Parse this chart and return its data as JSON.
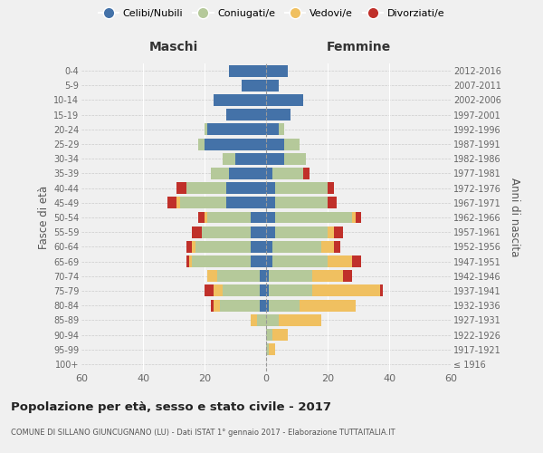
{
  "age_groups": [
    "100+",
    "95-99",
    "90-94",
    "85-89",
    "80-84",
    "75-79",
    "70-74",
    "65-69",
    "60-64",
    "55-59",
    "50-54",
    "45-49",
    "40-44",
    "35-39",
    "30-34",
    "25-29",
    "20-24",
    "15-19",
    "10-14",
    "5-9",
    "0-4"
  ],
  "birth_years": [
    "≤ 1916",
    "1917-1921",
    "1922-1926",
    "1927-1931",
    "1932-1936",
    "1937-1941",
    "1942-1946",
    "1947-1951",
    "1952-1956",
    "1957-1961",
    "1962-1966",
    "1967-1971",
    "1972-1976",
    "1977-1981",
    "1982-1986",
    "1987-1991",
    "1992-1996",
    "1997-2001",
    "2002-2006",
    "2007-2011",
    "2012-2016"
  ],
  "maschi": {
    "celibi": [
      0,
      0,
      0,
      0,
      2,
      2,
      2,
      5,
      5,
      5,
      5,
      13,
      13,
      12,
      10,
      20,
      19,
      13,
      17,
      8,
      12
    ],
    "coniugati": [
      0,
      0,
      0,
      3,
      13,
      12,
      14,
      19,
      18,
      16,
      14,
      15,
      13,
      6,
      4,
      2,
      1,
      0,
      0,
      0,
      0
    ],
    "vedovi": [
      0,
      0,
      0,
      2,
      2,
      3,
      3,
      1,
      1,
      0,
      1,
      1,
      0,
      0,
      0,
      0,
      0,
      0,
      0,
      0,
      0
    ],
    "divorziati": [
      0,
      0,
      0,
      0,
      1,
      3,
      0,
      1,
      2,
      3,
      2,
      3,
      3,
      0,
      0,
      0,
      0,
      0,
      0,
      0,
      0
    ]
  },
  "femmine": {
    "nubili": [
      0,
      0,
      0,
      0,
      1,
      1,
      1,
      2,
      2,
      3,
      3,
      3,
      3,
      2,
      6,
      6,
      4,
      8,
      12,
      4,
      7
    ],
    "coniugate": [
      0,
      1,
      2,
      4,
      10,
      14,
      14,
      18,
      16,
      17,
      25,
      17,
      17,
      10,
      7,
      5,
      2,
      0,
      0,
      0,
      0
    ],
    "vedove": [
      0,
      2,
      5,
      14,
      18,
      22,
      10,
      8,
      4,
      2,
      1,
      0,
      0,
      0,
      0,
      0,
      0,
      0,
      0,
      0,
      0
    ],
    "divorziate": [
      0,
      0,
      0,
      0,
      0,
      1,
      3,
      3,
      2,
      3,
      2,
      3,
      2,
      2,
      0,
      0,
      0,
      0,
      0,
      0,
      0
    ]
  },
  "colors": {
    "celibi": "#4472a8",
    "coniugati": "#b5c99a",
    "vedovi": "#f0c060",
    "divorziati": "#c0302a"
  },
  "xlim": 60,
  "title": "Popolazione per età, sesso e stato civile - 2017",
  "subtitle": "COMUNE DI SILLANO GIUNCUGNANO (LU) - Dati ISTAT 1° gennaio 2017 - Elaborazione TUTTAITALIA.IT",
  "ylabel_left": "Fasce di età",
  "ylabel_right": "Anni di nascita",
  "header_left": "Maschi",
  "header_right": "Femmine",
  "legend_labels": [
    "Celibi/Nubili",
    "Coniugati/e",
    "Vedovi/e",
    "Divorziati/e"
  ],
  "bg_color": "#f0f0f0"
}
